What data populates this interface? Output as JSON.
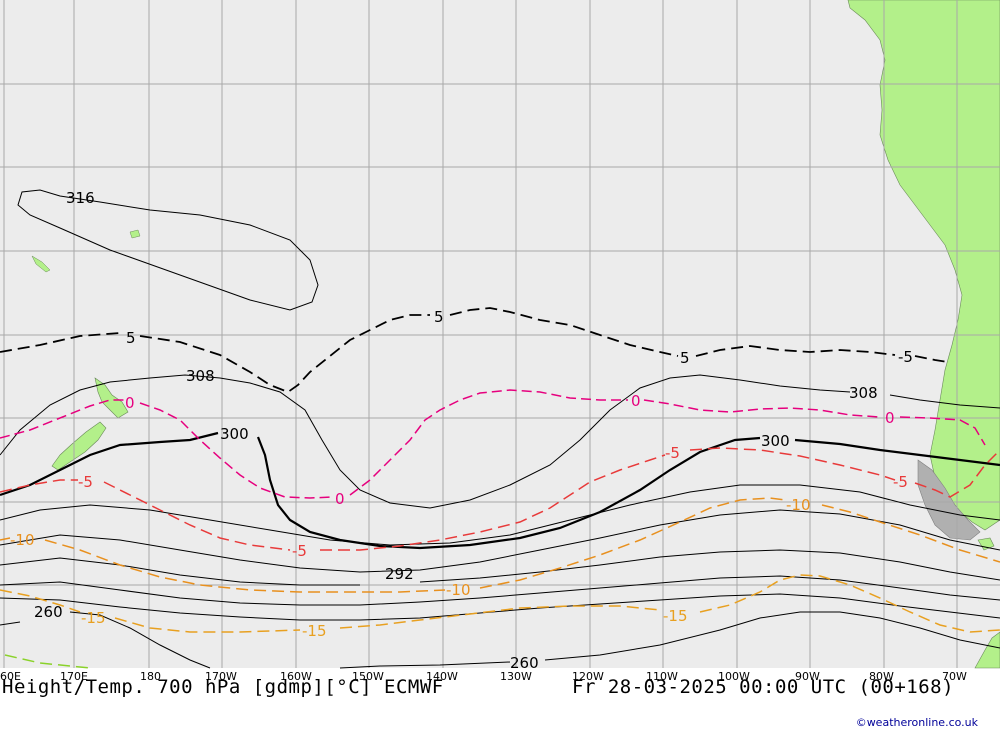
{
  "map": {
    "title": "Height/Temp. 700 hPa [gdmp][°C] ECMWF",
    "valid_time": "Fr 28-03-2025 00:00 UTC (00+168)",
    "credit": "©weatheronline.co.uk",
    "colors": {
      "ocean": "#ececec",
      "land": "#b3f08a",
      "grid": "#a8a8a8",
      "height_contour": "#000000",
      "temp_minus5_black": "#000000",
      "temp_0": "#e6007e",
      "temp_minus5": "#e83a3a",
      "temp_minus10": "#e8901e",
      "temp_minus15": "#e8a020",
      "temp_minus20": "#8ad22a"
    },
    "longitude_labels": [
      "60E",
      "170E",
      "180",
      "170W",
      "160W",
      "150W",
      "140W",
      "130W",
      "120W",
      "110W",
      "100W",
      "90W",
      "80W",
      "70W"
    ],
    "contour_labels": {
      "h316": "316",
      "h308a": "308",
      "h308b": "308",
      "h300a": "300",
      "h300b": "300",
      "h292": "292",
      "h260a": "260",
      "h260b": "260",
      "t5a": "5",
      "t5b": "5",
      "t5c": "5",
      "t5d": "-5",
      "t0a": "0",
      "t0b": "0",
      "t0c": "0",
      "t0d": "0",
      "tm5a": "-5",
      "tm5b": "-5",
      "tm5c": "-5",
      "tm5d": "-5",
      "tm10a": "-10",
      "tm10b": "-10",
      "tm10c": "-10",
      "tm15a": "-15",
      "tm15b": "-15",
      "tm15c": "-15"
    }
  }
}
